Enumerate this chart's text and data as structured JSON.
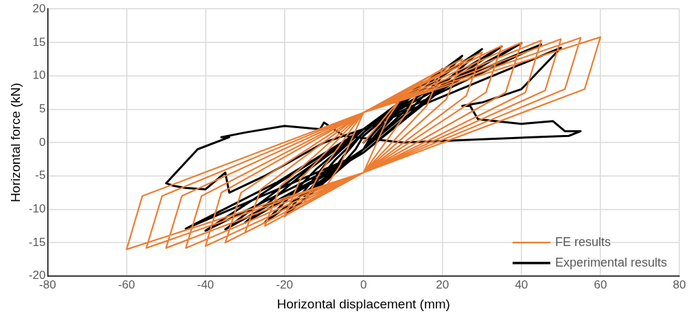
{
  "chart_data": {
    "type": "line",
    "xlabel": "Horizontal displacement (mm)",
    "ylabel": "Horizontal force (kN)",
    "xlim": [
      -80,
      80
    ],
    "xticks": [
      -80,
      -60,
      -40,
      -20,
      0,
      20,
      40,
      60,
      80
    ],
    "ylim": [
      -20,
      20
    ],
    "yticks": [
      -20,
      -15,
      -10,
      -5,
      0,
      5,
      10,
      15,
      20
    ],
    "grid": true,
    "legend": "bottom right",
    "series": [
      {
        "name": "FE results",
        "color": "#ed7d31",
        "type": "line",
        "x": [
          0,
          10,
          6,
          0,
          -10,
          -6,
          0,
          15,
          11,
          0,
          -15,
          -11,
          0,
          20,
          16,
          0,
          -20,
          -16,
          0,
          25,
          21,
          0,
          -25,
          -21,
          0,
          30,
          26,
          0,
          -30,
          -26,
          0,
          35,
          31,
          0,
          -35,
          -31,
          0,
          40,
          36,
          0,
          -40,
          -36,
          0,
          45,
          41,
          0,
          -45,
          -41,
          0,
          50,
          46,
          0,
          -50,
          -46,
          0,
          55,
          51,
          0,
          -55,
          -51,
          0,
          60,
          56,
          0,
          -60,
          -56,
          0
        ],
        "values": [
          0,
          7,
          3.5,
          -4.5,
          -7,
          -3.5,
          4.5,
          9,
          4.5,
          -4.5,
          -9,
          -4.5,
          4.5,
          11,
          5.5,
          -4.5,
          -11,
          -5.5,
          4.5,
          12.5,
          6.5,
          -4.5,
          -12.5,
          -6.5,
          4.5,
          13.5,
          7,
          -4.5,
          -13.5,
          -7,
          4.5,
          14.5,
          7.5,
          -4.5,
          -15,
          -7.5,
          4.5,
          15,
          7.5,
          -4.5,
          -15.5,
          -7.5,
          4.5,
          15.3,
          7.5,
          -4.5,
          -15.8,
          -8,
          4.5,
          15.5,
          7.8,
          -4.5,
          -15.8,
          -8,
          4.5,
          15.7,
          8,
          -4.5,
          -15.8,
          -8,
          4.5,
          15.8,
          8,
          -4.5,
          -16,
          -8,
          4.5
        ]
      },
      {
        "name": "Experimental results",
        "color": "#000000",
        "type": "line",
        "x": [
          0,
          5,
          2,
          0,
          -5,
          -2,
          0,
          10,
          5,
          0,
          -10,
          -5,
          0,
          15,
          7,
          0,
          -15,
          -7,
          0,
          20,
          10,
          0,
          -20,
          -10,
          0,
          25,
          12,
          0,
          -25,
          -12,
          0,
          30,
          15,
          0,
          -30,
          -15,
          0,
          35,
          17,
          0,
          -35,
          -17,
          0,
          40,
          20,
          0,
          -40,
          -20,
          0,
          45,
          22,
          0,
          -45,
          -22,
          0,
          50,
          40,
          30,
          25,
          27,
          29,
          40,
          48,
          51,
          55,
          52,
          30,
          10,
          -5,
          -10,
          -11,
          -20,
          -30,
          -36,
          -34,
          -42,
          -50,
          -48,
          -45,
          -40,
          -35,
          -34,
          -25,
          -10,
          0
        ],
        "values": [
          0,
          3,
          1,
          -1,
          -3,
          -1,
          1,
          6,
          2.5,
          -1,
          -6,
          -2,
          1.5,
          9,
          3.5,
          -1,
          -8,
          -2.5,
          1.5,
          11,
          4.5,
          -1,
          -11,
          -3.5,
          2,
          13,
          5,
          -1,
          -12,
          -4,
          2,
          14,
          6,
          -1.5,
          -12,
          -4.5,
          2,
          14.4,
          7,
          -1.5,
          -13,
          -5,
          2,
          14.9,
          8,
          -1.5,
          -13.2,
          -5.5,
          2,
          14.7,
          9,
          -1.5,
          -12.9,
          -6,
          2,
          14.2,
          8,
          6,
          5.5,
          5.5,
          3.5,
          2.8,
          3.2,
          1.7,
          1.7,
          1,
          0.5,
          0,
          1,
          3,
          2,
          2.5,
          1.5,
          0.8,
          0.8,
          -1,
          -6.1,
          -6.5,
          -6.8,
          -7,
          -4.5,
          -7.5,
          -5,
          0,
          2
        ]
      }
    ]
  }
}
